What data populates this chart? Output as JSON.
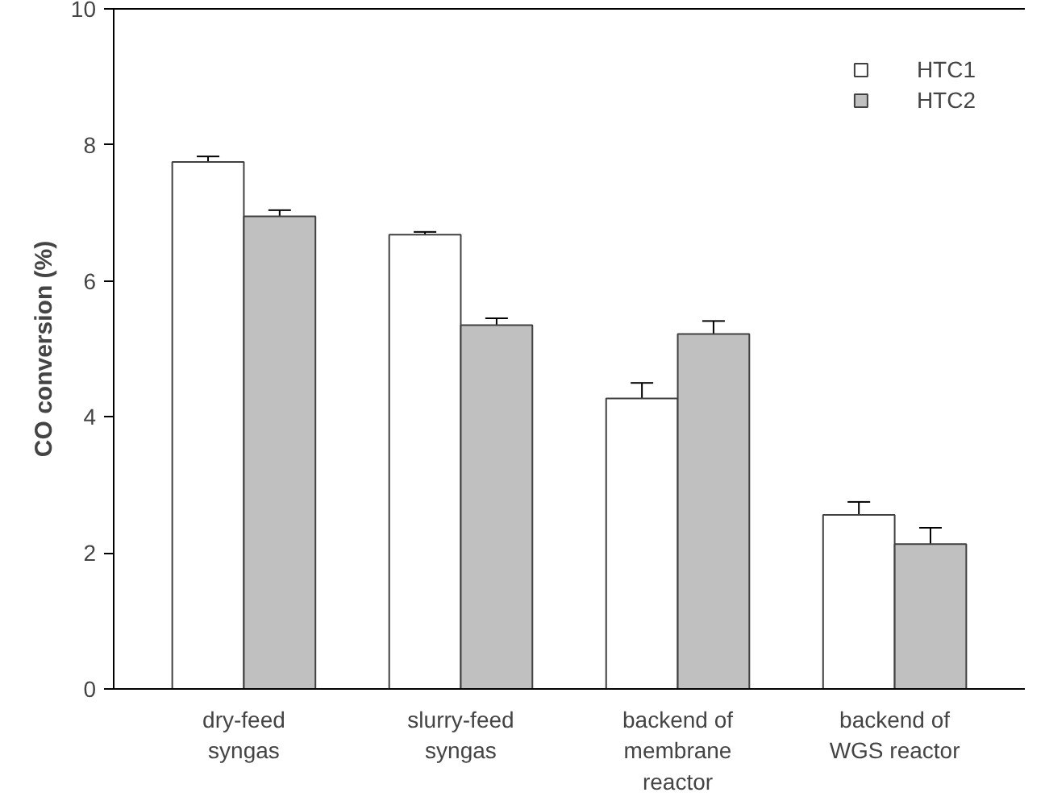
{
  "chart_data": {
    "type": "bar",
    "ylabel": "CO conversion (%)",
    "categories": [
      "dry-feed syngas",
      "slurry-feed syngas",
      "backend of membrane reactor",
      "backend of WGS reactor"
    ],
    "series": [
      {
        "name": "HTC1",
        "color": "#ffffff",
        "values": [
          7.75,
          6.68,
          4.27,
          2.56
        ],
        "errors": [
          0.08,
          0.04,
          0.23,
          0.19
        ]
      },
      {
        "name": "HTC2",
        "color": "#c0c0c0",
        "values": [
          6.95,
          5.35,
          5.22,
          2.13
        ],
        "errors": [
          0.09,
          0.1,
          0.19,
          0.24
        ]
      }
    ],
    "ylim": [
      0,
      10
    ],
    "yticks": [
      0,
      2,
      4,
      6,
      8,
      10
    ],
    "grid": false,
    "legend": "top right"
  }
}
